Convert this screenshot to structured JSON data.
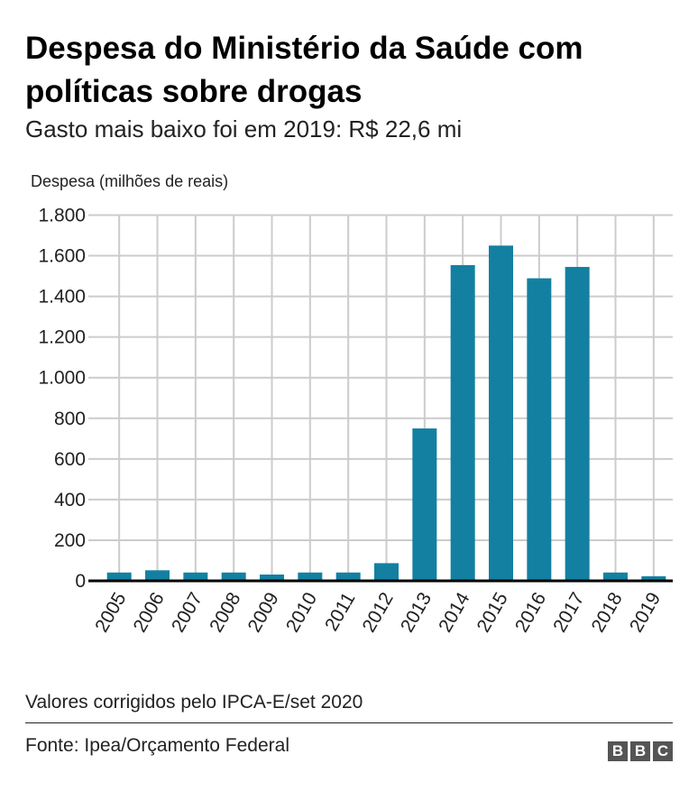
{
  "title": "Despesa do Ministério da Saúde com políticas sobre drogas",
  "subtitle": "Gasto mais baixo foi em 2019: R$ 22,6 mi",
  "note": "Valores corrigidos pelo IPCA-E/set 2020",
  "source": "Fonte: Ipea/Orçamento Federal",
  "logo": "BBC",
  "chart_data": {
    "type": "bar",
    "ylabel": "Despesa (milhões de reais)",
    "xlabel": "",
    "categories": [
      "2005",
      "2006",
      "2007",
      "2008",
      "2009",
      "2010",
      "2011",
      "2012",
      "2013",
      "2014",
      "2015",
      "2016",
      "2017",
      "2018",
      "2019"
    ],
    "values": [
      41,
      52,
      41,
      41,
      31,
      41,
      41,
      87,
      750,
      1554,
      1650,
      1489,
      1545,
      41,
      22.6
    ],
    "ylim": [
      0,
      1800
    ],
    "yticks": [
      0,
      200,
      400,
      600,
      800,
      1000,
      1200,
      1400,
      1600,
      1800
    ],
    "ytick_labels": [
      "0",
      "200",
      "400",
      "600",
      "800",
      "1.000",
      "1.200",
      "1.400",
      "1.600",
      "1.800"
    ],
    "grid": true,
    "bar_color": "#1380A1"
  }
}
